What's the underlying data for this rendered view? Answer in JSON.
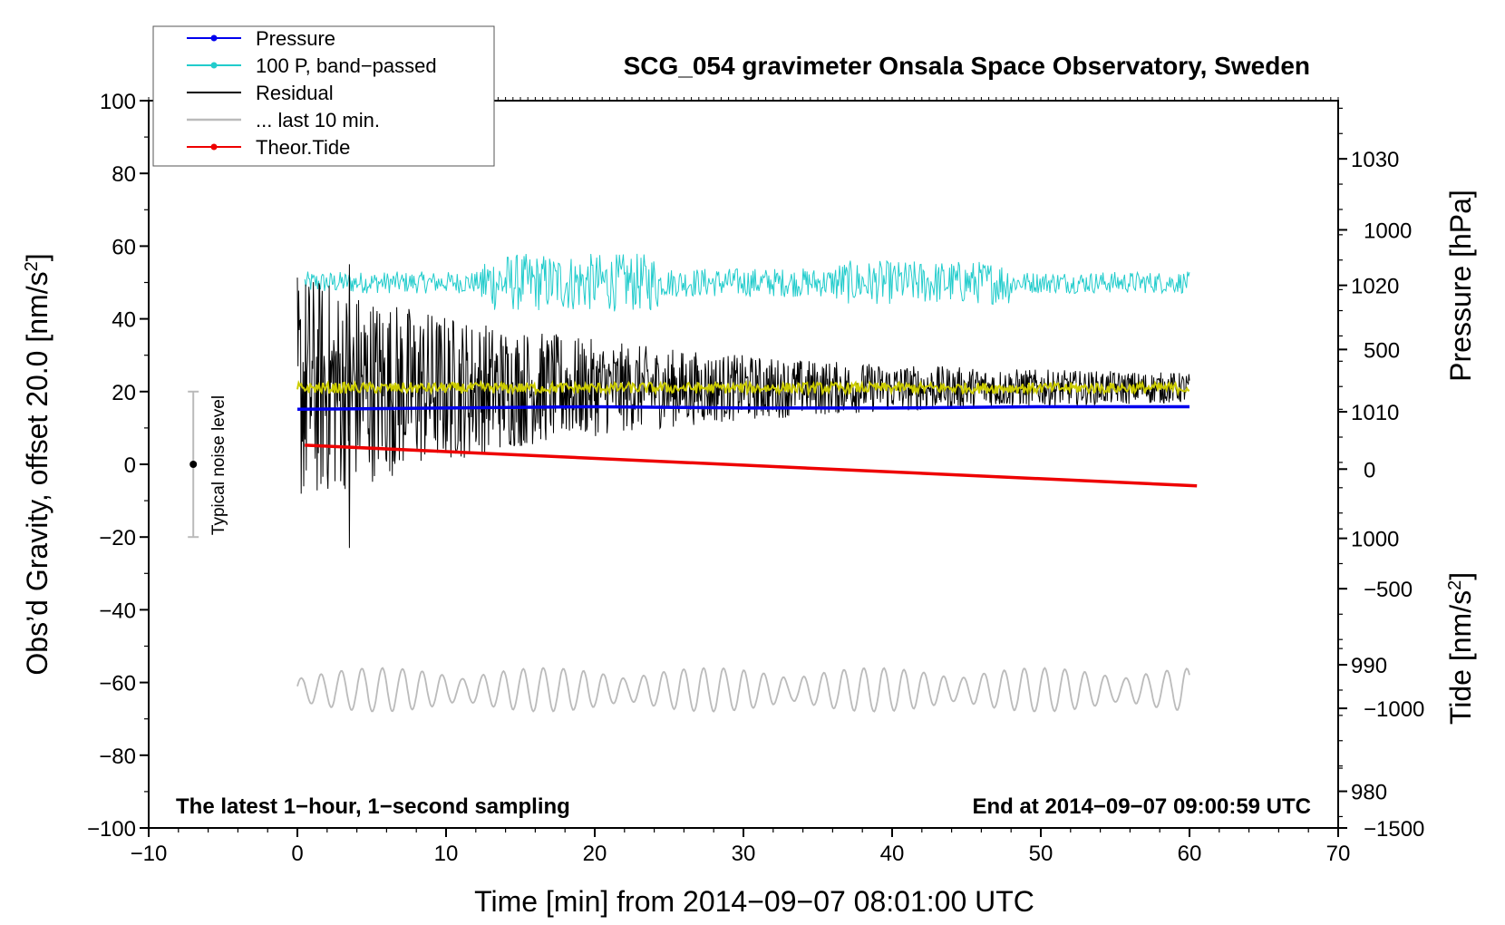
{
  "chart_data": {
    "type": "line",
    "title": "SCG_054 gravimeter Onsala Space Observatory, Sweden",
    "xlabel": "Time [min] from 2014−09−07 08:01:00 UTC",
    "ylabel": "Obs’d Gravity, offset 20.0 [nm/s",
    "ylabel_sup": "2",
    "ylabel_end": "]",
    "y2label": "Pressure [hPa]",
    "y3label": "Tide [nm/s",
    "y3label_sup": "2",
    "y3label_end": "]",
    "xlim": [
      -10,
      70
    ],
    "ylim": [
      -100,
      100
    ],
    "pressure_lim": [
      977.1,
      1034.6
    ],
    "tide_lim": [
      -1500,
      1540
    ],
    "x_ticks": [
      -10,
      0,
      10,
      20,
      30,
      40,
      50,
      60,
      70
    ],
    "x_tick_labels": [
      "−10",
      "0",
      "10",
      "20",
      "30",
      "40",
      "50",
      "60",
      "70"
    ],
    "y_ticks": [
      -100,
      -80,
      -60,
      -40,
      -20,
      0,
      20,
      40,
      60,
      80,
      100
    ],
    "y_tick_labels": [
      "−100",
      "−80",
      "−60",
      "−40",
      "−20",
      "0",
      "20",
      "40",
      "60",
      "80",
      "100"
    ],
    "pressure_ticks": [
      980,
      990,
      1000,
      1010,
      1020,
      1030
    ],
    "pressure_tick_labels": [
      "980",
      "990",
      "1000",
      "1010",
      "1020",
      "1030"
    ],
    "tide_ticks": [
      -1500,
      -1000,
      -500,
      0,
      500,
      1000
    ],
    "tide_tick_labels": [
      "−1500",
      "−1000",
      "−500",
      "0",
      "500",
      "1000"
    ],
    "annotations": {
      "left": "The latest 1−hour, 1−second sampling",
      "right": "End at 2014−09−07 09:00:59 UTC",
      "noise": "Typical noise level"
    },
    "noise_bar": {
      "x": -7,
      "center": 0,
      "low": -20,
      "high": 20
    },
    "legend_position": "top-left",
    "legend": [
      {
        "label": "Pressure",
        "color": "#0000ee",
        "marker": true
      },
      {
        "label": "100 P, band−passed",
        "color": "#22cccc",
        "marker": true
      },
      {
        "label": "Residual",
        "color": "#000000",
        "marker": false
      },
      {
        "label": "... last 10 min.",
        "color": "#bbbbbb",
        "marker": false
      },
      {
        "label": "Theor.Tide",
        "color": "#ee0000",
        "marker": true
      }
    ],
    "series": [
      {
        "name": "Pressure",
        "axis": "pressure",
        "color": "#0000ee",
        "x": [
          0,
          10,
          20,
          30,
          40,
          50,
          60
        ],
        "values": [
          1010.2,
          1010.3,
          1010.4,
          1010.3,
          1010.3,
          1010.4,
          1010.4
        ]
      },
      {
        "name": "100 P, band−passed",
        "axis": "gravity",
        "color": "#22cccc",
        "x": [
          0.5,
          60
        ],
        "center": 50,
        "amplitude": [
          3,
          8,
          4,
          6,
          3
        ],
        "note": "oscillating band-passed pressure around 50 nm/s2"
      },
      {
        "name": "Residual",
        "axis": "gravity",
        "color": "#000000",
        "x": [
          0,
          60
        ],
        "center": 21,
        "amplitude_start": 30,
        "amplitude_end": 3,
        "spikes": [
          {
            "x": 3.5,
            "y": -23
          },
          {
            "x": 3.5,
            "y": 55
          }
        ]
      },
      {
        "name": "Residual smoothed",
        "axis": "gravity",
        "color": "#cccc00",
        "x": [
          0,
          60
        ],
        "center": 21,
        "amplitude": 1.5
      },
      {
        "name": "Theor.Tide",
        "axis": "tide",
        "color": "#ee0000",
        "x": [
          0.5,
          60.5
        ],
        "values": [
          100,
          -70
        ]
      },
      {
        "name": "... last 10 min.",
        "axis": "gravity",
        "color": "#bbbbbb",
        "x": [
          0,
          60
        ],
        "center": -62,
        "amplitude": 5
      }
    ]
  }
}
